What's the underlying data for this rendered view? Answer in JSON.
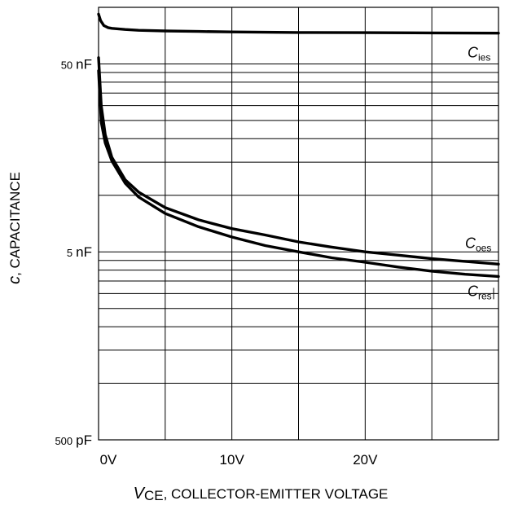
{
  "chart_data": {
    "type": "line",
    "y_scale": "log",
    "ylim": [
      500,
      100000
    ],
    "xlim": [
      0,
      30
    ],
    "y_unit": "pF",
    "grid": true,
    "xlabel": {
      "symbol": "V",
      "subscript": "CE",
      "text": ", COLLECTOR-EMITTER VOLTAGE"
    },
    "ylabel": {
      "symbol": "c",
      "text": ", CAPACITANCE"
    },
    "y_ticks": [
      {
        "value": 500,
        "num": "500",
        "unit": "pF"
      },
      {
        "value": 5000,
        "num": "5",
        "unit": "nF"
      },
      {
        "value": 50000,
        "num": "50",
        "unit": "nF"
      }
    ],
    "x_ticks": [
      {
        "value": 0,
        "label": "0V"
      },
      {
        "value": 10,
        "label": "10V"
      },
      {
        "value": 20,
        "label": "20V"
      }
    ],
    "series": [
      {
        "name": "C",
        "subscript": "ies",
        "x": [
          0,
          0.15,
          0.4,
          0.7,
          1,
          2,
          3,
          5,
          7.5,
          10,
          15,
          20,
          25,
          30
        ],
        "y": [
          92000,
          85000,
          80000,
          78000,
          77300,
          76200,
          75500,
          74900,
          74400,
          74000,
          73500,
          73300,
          73100,
          72900
        ]
      },
      {
        "name": "C",
        "subscript": "oes",
        "x": [
          0,
          0.2,
          0.5,
          1,
          2,
          3,
          5,
          7.5,
          10,
          12.5,
          15,
          17.5,
          20,
          22.5,
          25,
          27.5,
          30
        ],
        "y": [
          54000,
          30000,
          21000,
          15900,
          12100,
          10400,
          8600,
          7400,
          6650,
          6150,
          5650,
          5300,
          5000,
          4800,
          4600,
          4450,
          4300
        ]
      },
      {
        "name": "C",
        "subscript": "res",
        "x": [
          0,
          0.2,
          0.5,
          1,
          2,
          3,
          5,
          7.5,
          10,
          12.5,
          15,
          17.5,
          20,
          22.5,
          25,
          27.5,
          30
        ],
        "y": [
          46000,
          24500,
          19000,
          15200,
          11600,
          9800,
          8000,
          6800,
          6000,
          5400,
          5000,
          4650,
          4400,
          4150,
          3950,
          3800,
          3700
        ]
      }
    ]
  }
}
